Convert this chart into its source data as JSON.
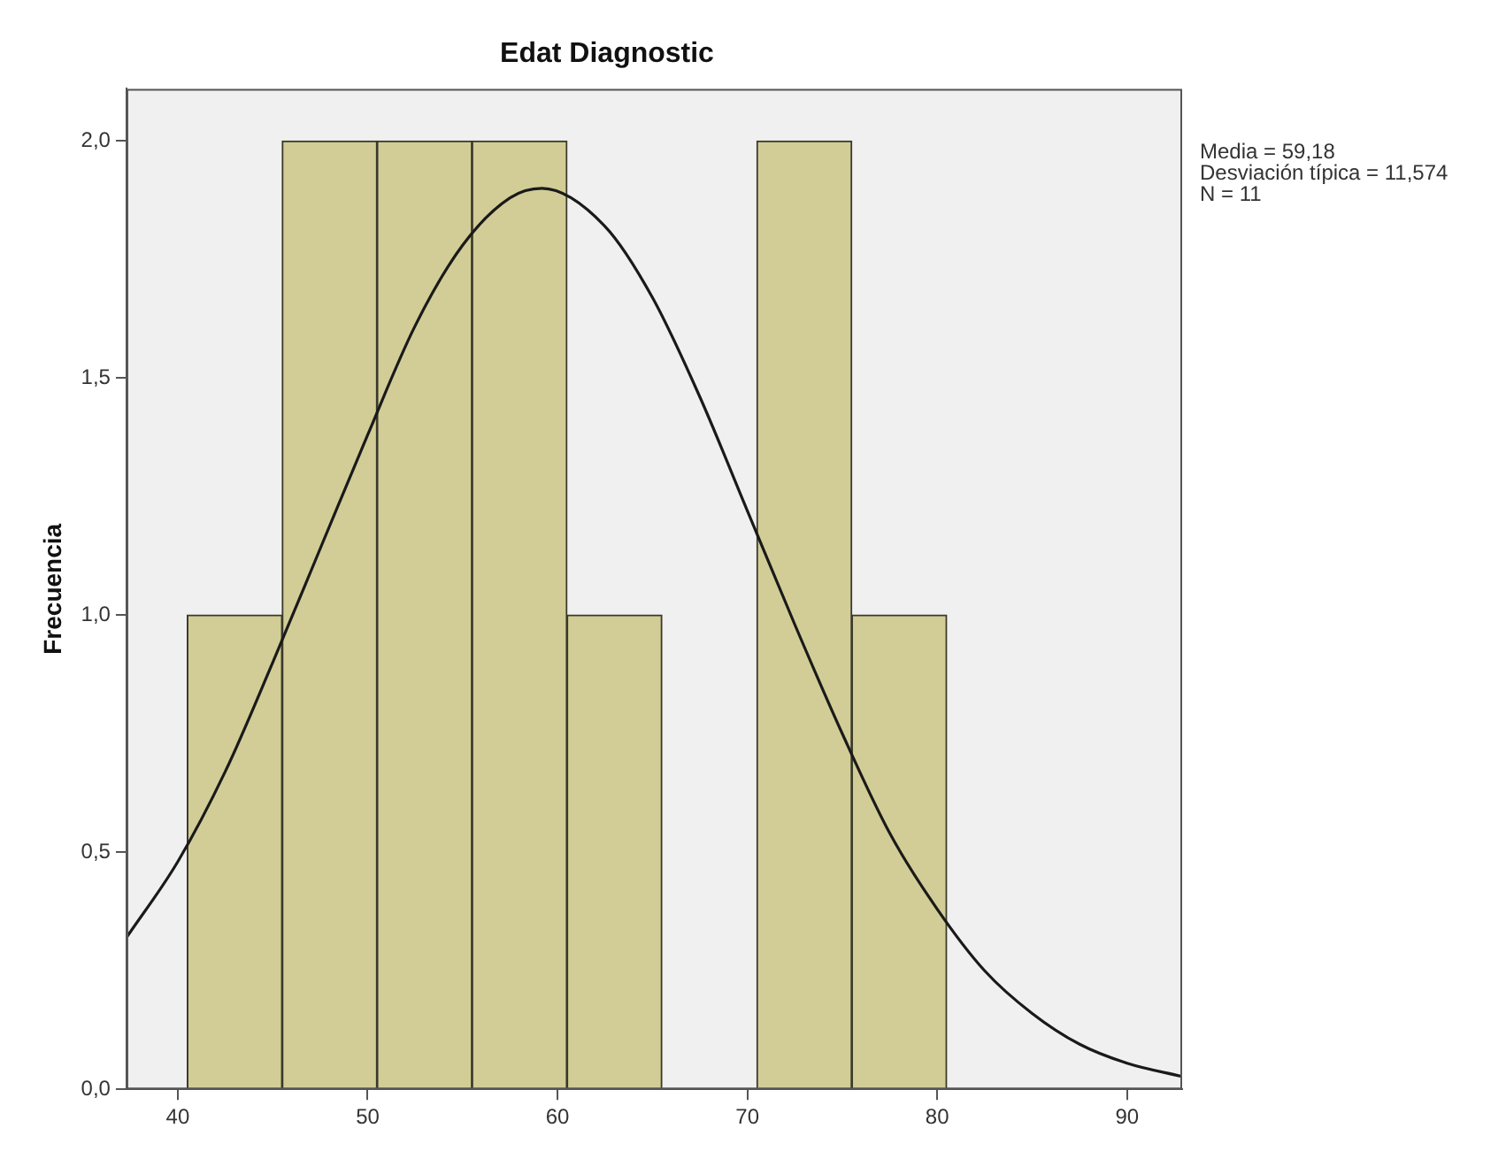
{
  "chart_data": {
    "type": "histogram",
    "title": "Edat Diagnostic",
    "ylabel": "Frecuencia",
    "annotations": [
      "Media = 59,18",
      "Desviación típica = 11,574",
      "N = 11"
    ],
    "bins": [
      40.5,
      45.5,
      50.5,
      55.5,
      60.5,
      65.5,
      70.5,
      75.5,
      80.5
    ],
    "values": [
      1,
      2,
      2,
      2,
      1,
      0,
      2,
      1
    ],
    "color": "#d2cd96",
    "series": [
      {
        "type": "line",
        "color": "#1a1a1a",
        "x": [
          37.3,
          40,
          42.5,
          45,
          47.5,
          50,
          52.5,
          55,
          57.5,
          59.18,
          62.5,
          65,
          67.5,
          70,
          72.5,
          75,
          77.5,
          80,
          82.5,
          85,
          87.5,
          90,
          92.9
        ],
        "values": [
          0.32,
          0.48,
          0.67,
          0.9,
          1.14,
          1.38,
          1.61,
          1.78,
          1.88,
          1.9,
          1.82,
          1.67,
          1.46,
          1.22,
          0.98,
          0.75,
          0.54,
          0.38,
          0.25,
          0.16,
          0.095,
          0.055,
          0.027
        ]
      }
    ],
    "xlim": [
      37.3,
      92.9
    ],
    "xticks": [
      40,
      50,
      60,
      70,
      80,
      90
    ],
    "ylim": [
      0,
      2.11
    ],
    "yticks": [
      {
        "value": 0,
        "label": "0,0"
      },
      {
        "value": 0.5,
        "label": "0,5"
      },
      {
        "value": 1,
        "label": "1,0"
      },
      {
        "value": 1.5,
        "label": "1,5"
      },
      {
        "value": 2,
        "label": "2,0"
      }
    ],
    "grid": false,
    "legend": false,
    "marker": "none",
    "line_style": "solid"
  }
}
